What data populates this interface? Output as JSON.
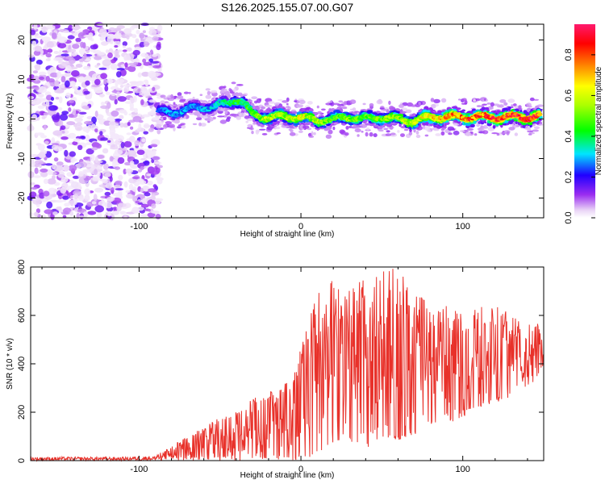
{
  "title": "S126.2025.155.07.00.G07",
  "chart_data": [
    {
      "type": "heatmap",
      "xlabel": "Height of straight line (km)",
      "ylabel": "Frequency (Hz)",
      "xlim": [
        -167,
        150
      ],
      "ylim": [
        -25,
        24
      ],
      "x_ticks": [
        -100,
        0,
        100
      ],
      "y_ticks": [
        -20,
        -10,
        0,
        10,
        20
      ],
      "colorbar": {
        "label": "Normalized spectral amplitude",
        "range": [
          0,
          0.95
        ],
        "ticks": [
          "0.0",
          "0.2",
          "0.4",
          "0.6",
          "0.8"
        ],
        "colormap": "rainbow (violet to red)"
      },
      "noise_region": {
        "x_range": [
          -167,
          -87
        ],
        "description_level": "low"
      },
      "ridge": {
        "name": "signal",
        "x": [
          -88,
          -80,
          -70,
          -60,
          -50,
          -45,
          -40,
          -35,
          -30,
          -20,
          -10,
          0,
          10,
          20,
          30,
          40,
          50,
          60,
          70,
          80,
          90,
          100,
          110,
          120,
          130,
          140,
          148
        ],
        "y": [
          2,
          1.5,
          2.5,
          3,
          3.5,
          4,
          5,
          4,
          1,
          0.5,
          0.5,
          0.5,
          -0.5,
          0,
          0.5,
          0,
          0.5,
          0,
          -0.5,
          0.5,
          0.5,
          0.5,
          0.5,
          0.5,
          0.5,
          0.5,
          0.5
        ],
        "amplitude": [
          0.25,
          0.3,
          0.3,
          0.3,
          0.35,
          0.4,
          0.45,
          0.45,
          0.5,
          0.6,
          0.6,
          0.65,
          0.55,
          0.5,
          0.55,
          0.5,
          0.55,
          0.55,
          0.6,
          0.7,
          0.75,
          0.8,
          0.85,
          0.85,
          0.9,
          0.9,
          0.9
        ]
      }
    },
    {
      "type": "line",
      "xlabel": "Height of straight line (km)",
      "ylabel": "SNR (10 * v/v)",
      "xlim": [
        -167,
        150
      ],
      "ylim": [
        0,
        800
      ],
      "x_ticks": [
        -100,
        0,
        100
      ],
      "y_ticks": [
        0,
        200,
        400,
        600,
        800
      ],
      "series": [
        {
          "color": "#e8312a",
          "envelope": {
            "x": [
              -167,
              -140,
              -110,
              -90,
              -80,
              -70,
              -60,
              -50,
              -40,
              -30,
              -20,
              -10,
              -5,
              0,
              5,
              10,
              20,
              30,
              40,
              50,
              60,
              70,
              80,
              90,
              100,
              110,
              120,
              130,
              140,
              145,
              150
            ],
            "upper": [
              15,
              15,
              15,
              20,
              60,
              100,
              140,
              180,
              220,
              260,
              280,
              320,
              350,
              480,
              620,
              700,
              750,
              720,
              760,
              780,
              800,
              720,
              640,
              650,
              600,
              640,
              660,
              600,
              560,
              600,
              480
            ],
            "lower": [
              0,
              0,
              0,
              0,
              0,
              0,
              0,
              0,
              0,
              0,
              0,
              0,
              0,
              0,
              0,
              20,
              60,
              80,
              40,
              100,
              80,
              100,
              150,
              150,
              180,
              220,
              240,
              260,
              300,
              320,
              400
            ]
          }
        }
      ]
    }
  ]
}
